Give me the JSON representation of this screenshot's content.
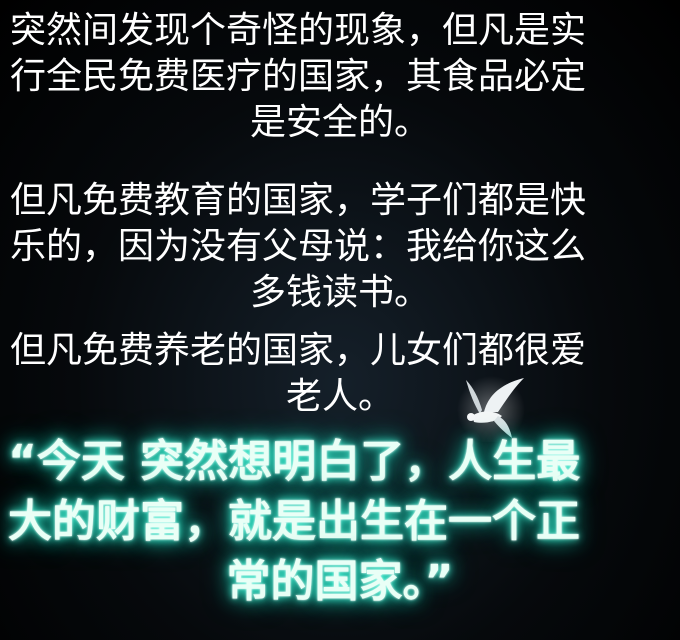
{
  "paragraphs": [
    {
      "lines": [
        "突然间发现个奇怪的现象，但凡是实",
        "行全民免费医疗的国家，其食品必定",
        "是安全的。"
      ]
    },
    {
      "lines": [
        "但凡免费教育的国家，学子们都是快",
        "乐的，因为没有父母说：我给你这么",
        "多钱读书。"
      ]
    },
    {
      "lines": [
        "但凡免费养老的国家，儿女们都很爱",
        "老人。"
      ]
    }
  ],
  "quote": {
    "lines": [
      "“今天 突然想明白了，人生最",
      "大的财富，就是出生在一个正",
      "常的国家。”"
    ]
  },
  "colors": {
    "background": "#000000",
    "text": "#ffffff",
    "quote_glow": "#16d6b8"
  },
  "icons": {
    "dove": "dove-icon"
  }
}
